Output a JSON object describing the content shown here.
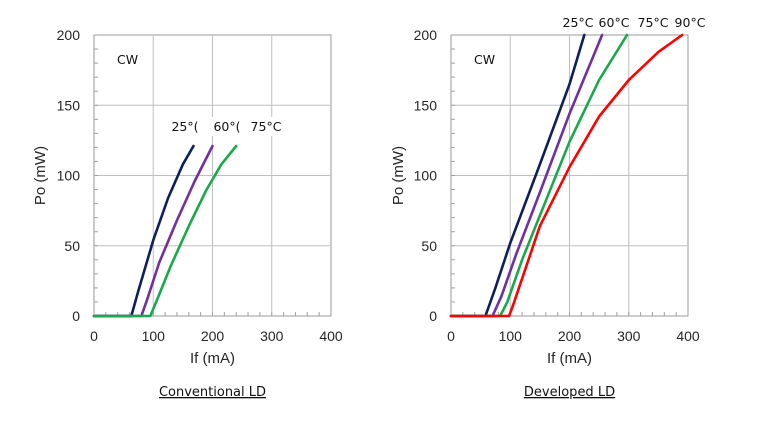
{
  "colors": {
    "25": "#0d1f5c",
    "60": "#7030a0",
    "75": "#19a84a",
    "90": "#ff0000",
    "grid": "#bfbfbf",
    "frame": "#999999"
  },
  "chart_data": [
    {
      "type": "line",
      "caption": "Conventional LD",
      "mode_label": "CW",
      "xlabel": "If (mA)",
      "ylabel": "Po (mW)",
      "xlim": [
        0,
        400
      ],
      "ylim": [
        0,
        200
      ],
      "xticks": [
        "0",
        "100",
        "200",
        "300",
        "400"
      ],
      "yticks": [
        "0",
        "50",
        "100",
        "150",
        "200"
      ],
      "grid": true,
      "series": [
        {
          "name": "25°(",
          "color_key": "25",
          "x": [
            0,
            63,
            75,
            100,
            125,
            150,
            168
          ],
          "y": [
            0,
            0,
            18,
            54,
            84,
            108,
            121
          ]
        },
        {
          "name": "60°(",
          "color_key": "60",
          "x": [
            0,
            80,
            90,
            110,
            140,
            170,
            200
          ],
          "y": [
            0,
            0,
            12,
            38,
            68,
            96,
            121
          ]
        },
        {
          "name": "75°C",
          "color_key": "75",
          "x": [
            0,
            95,
            105,
            130,
            160,
            190,
            215,
            240
          ],
          "y": [
            0,
            0,
            10,
            36,
            64,
            90,
            108,
            121
          ]
        }
      ]
    },
    {
      "type": "line",
      "caption": "Developed LD",
      "mode_label": "CW",
      "xlabel": "If (mA)",
      "ylabel": "Po (mW)",
      "xlim": [
        0,
        400
      ],
      "ylim": [
        0,
        200
      ],
      "xticks": [
        "0",
        "100",
        "200",
        "300",
        "400"
      ],
      "yticks": [
        "0",
        "50",
        "100",
        "150",
        "200"
      ],
      "grid": true,
      "series": [
        {
          "name": "25°C",
          "color_key": "25",
          "x": [
            0,
            58,
            75,
            100,
            150,
            200,
            225
          ],
          "y": [
            0,
            0,
            20,
            52,
            108,
            165,
            200
          ]
        },
        {
          "name": "60°C",
          "color_key": "60",
          "x": [
            0,
            70,
            85,
            110,
            150,
            200,
            255
          ],
          "y": [
            0,
            0,
            14,
            44,
            88,
            144,
            200
          ]
        },
        {
          "name": "75°C",
          "color_key": "75",
          "x": [
            0,
            83,
            95,
            120,
            160,
            200,
            250,
            297
          ],
          "y": [
            0,
            0,
            10,
            40,
            82,
            124,
            168,
            200
          ]
        },
        {
          "name": "90°C",
          "color_key": "90",
          "x": [
            0,
            98,
            105,
            150,
            200,
            250,
            300,
            350,
            390
          ],
          "y": [
            0,
            0,
            8,
            64,
            106,
            142,
            168,
            188,
            200
          ]
        }
      ]
    }
  ]
}
